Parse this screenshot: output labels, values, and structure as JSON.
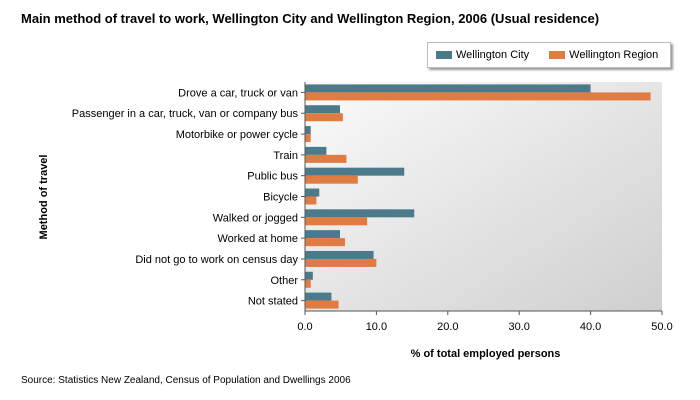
{
  "title": "Main method of travel to work, Wellington City and Wellington Region, 2006 (Usual residence)",
  "source": "Source: Statistics New Zealand, Census of Population and Dwellings 2006",
  "colors": {
    "city": "#4b7b8b",
    "region": "#e07c42",
    "plot_bg_top": "#fbfbfb",
    "plot_bg_bottom": "#cfcfcf"
  },
  "chart_data": {
    "type": "bar",
    "orientation": "horizontal",
    "xlabel": "% of total employed persons",
    "ylabel": "Method of travel",
    "xlim": [
      0,
      50
    ],
    "xticks": [
      "0.0",
      "10.0",
      "20.0",
      "30.0",
      "40.0",
      "50.0"
    ],
    "legend_position": "top-right",
    "grid": false,
    "categories": [
      "Drove a car, truck or van",
      "Passenger in a car, truck, van or company bus",
      "Motorbike or power cycle",
      "Train",
      "Public bus",
      "Bicycle",
      "Walked or jogged",
      "Worked at home",
      "Did not go to work on census day",
      "Other",
      "Not stated"
    ],
    "series": [
      {
        "name": "Wellington City",
        "values": [
          40.0,
          4.9,
          0.8,
          3.0,
          13.9,
          2.0,
          15.3,
          4.9,
          9.6,
          1.1,
          3.7
        ]
      },
      {
        "name": "Wellington Region",
        "values": [
          48.4,
          5.3,
          0.8,
          5.8,
          7.4,
          1.6,
          8.7,
          5.6,
          10.0,
          0.8,
          4.7
        ]
      }
    ]
  }
}
